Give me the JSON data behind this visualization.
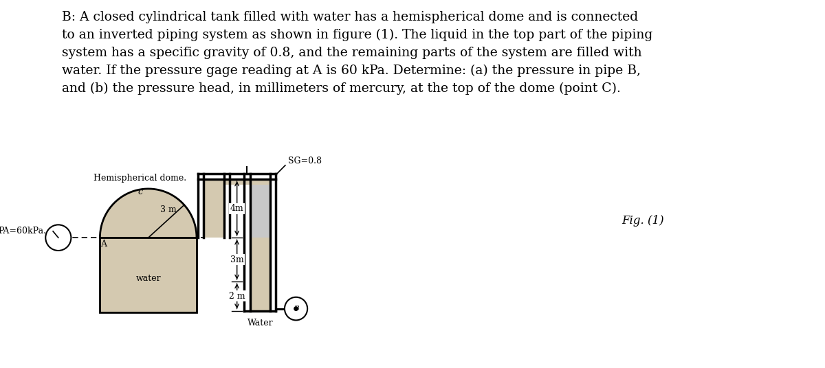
{
  "title_text": "B: A closed cylindrical tank filled with water has a hemispherical dome and is connected\nto an inverted piping system as shown in figure (1). The liquid in the top part of the piping\nsystem has a specific gravity of 0.8, and the remaining parts of the system are filled with\nwater. If the pressure gage reading at A is 60 kPa. Determine: (a) the pressure in pipe B,\nand (b) the pressure head, in millimeters of mercury, at the top of the dome (point C).",
  "fig_label": "Fig. (1)",
  "hemispherical_label": "Hemispherical dome.",
  "pa_label": "PA=60kPa.",
  "water_label": "water",
  "water_label2": "Water",
  "sg_label": "SG=0.8",
  "dim_4m": "4m",
  "dim_3m": "3m",
  "dim_2m": "2 m",
  "dim_3m_radius": "3 m",
  "point_c": "c",
  "point_a": "A",
  "point_b": "B",
  "bg_color": "#ffffff",
  "tank_fill_color": "#d4c9b0",
  "text_color": "#000000",
  "title_fontsize": 13.5,
  "label_fontsize": 9
}
